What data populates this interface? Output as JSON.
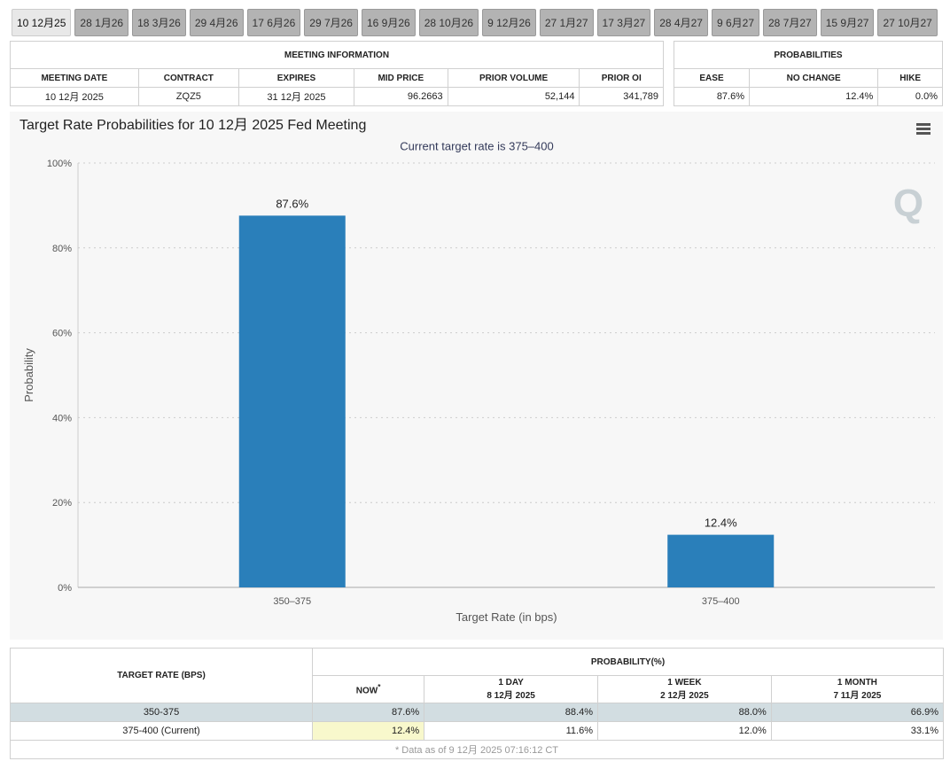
{
  "tabs": [
    "10 12月25",
    "28 1月26",
    "18 3月26",
    "29 4月26",
    "17 6月26",
    "29 7月26",
    "16 9月26",
    "28 10月26",
    "9 12月26",
    "27 1月27",
    "17 3月27",
    "28 4月27",
    "9 6月27",
    "28 7月27",
    "15 9月27",
    "27 10月27"
  ],
  "meeting_info": {
    "title": "MEETING INFORMATION",
    "headers": [
      "MEETING DATE",
      "CONTRACT",
      "EXPIRES",
      "MID PRICE",
      "PRIOR VOLUME",
      "PRIOR OI"
    ],
    "row": [
      "10 12月 2025",
      "ZQZ5",
      "31 12月 2025",
      "96.2663",
      "52,144",
      "341,789"
    ]
  },
  "probabilities": {
    "title": "PROBABILITIES",
    "headers": [
      "EASE",
      "NO CHANGE",
      "HIKE"
    ],
    "row": [
      "87.6%",
      "12.4%",
      "0.0%"
    ]
  },
  "chart_data": {
    "type": "bar",
    "title": "Target Rate Probabilities for 10 12月 2025 Fed Meeting",
    "subtitle": "Current target rate is 375–400",
    "x_label": "Target Rate (in bps)",
    "y_label": "Probability",
    "categories": [
      "350–375",
      "375–400"
    ],
    "values": [
      87.6,
      12.4
    ],
    "value_labels": [
      "87.6%",
      "12.4%"
    ],
    "color": "#2a7fba",
    "ylim": [
      0,
      100
    ],
    "yticks": [
      {
        "value": 0,
        "label": "0%"
      },
      {
        "value": 20,
        "label": "20%"
      },
      {
        "value": 40,
        "label": "40%"
      },
      {
        "value": 60,
        "label": "60%"
      },
      {
        "value": 80,
        "label": "80%"
      },
      {
        "value": 100,
        "label": "100%"
      }
    ],
    "grid": true
  },
  "history": {
    "rate_header": "TARGET RATE (BPS)",
    "prob_header": "PROBABILITY(%)",
    "columns": [
      {
        "label": "NOW",
        "note": "*"
      },
      {
        "label": "1 DAY",
        "date": "8 12月 2025"
      },
      {
        "label": "1 WEEK",
        "date": "2 12月 2025"
      },
      {
        "label": "1 MONTH",
        "date": "7 11月 2025"
      }
    ],
    "rows": [
      [
        "350-375",
        "87.6%",
        "88.4%",
        "88.0%",
        "66.9%"
      ],
      [
        "375-400 (Current)",
        "12.4%",
        "11.6%",
        "12.0%",
        "33.1%"
      ]
    ],
    "footnote": "* Data as of 9 12月 2025 07:16:12 CT"
  }
}
